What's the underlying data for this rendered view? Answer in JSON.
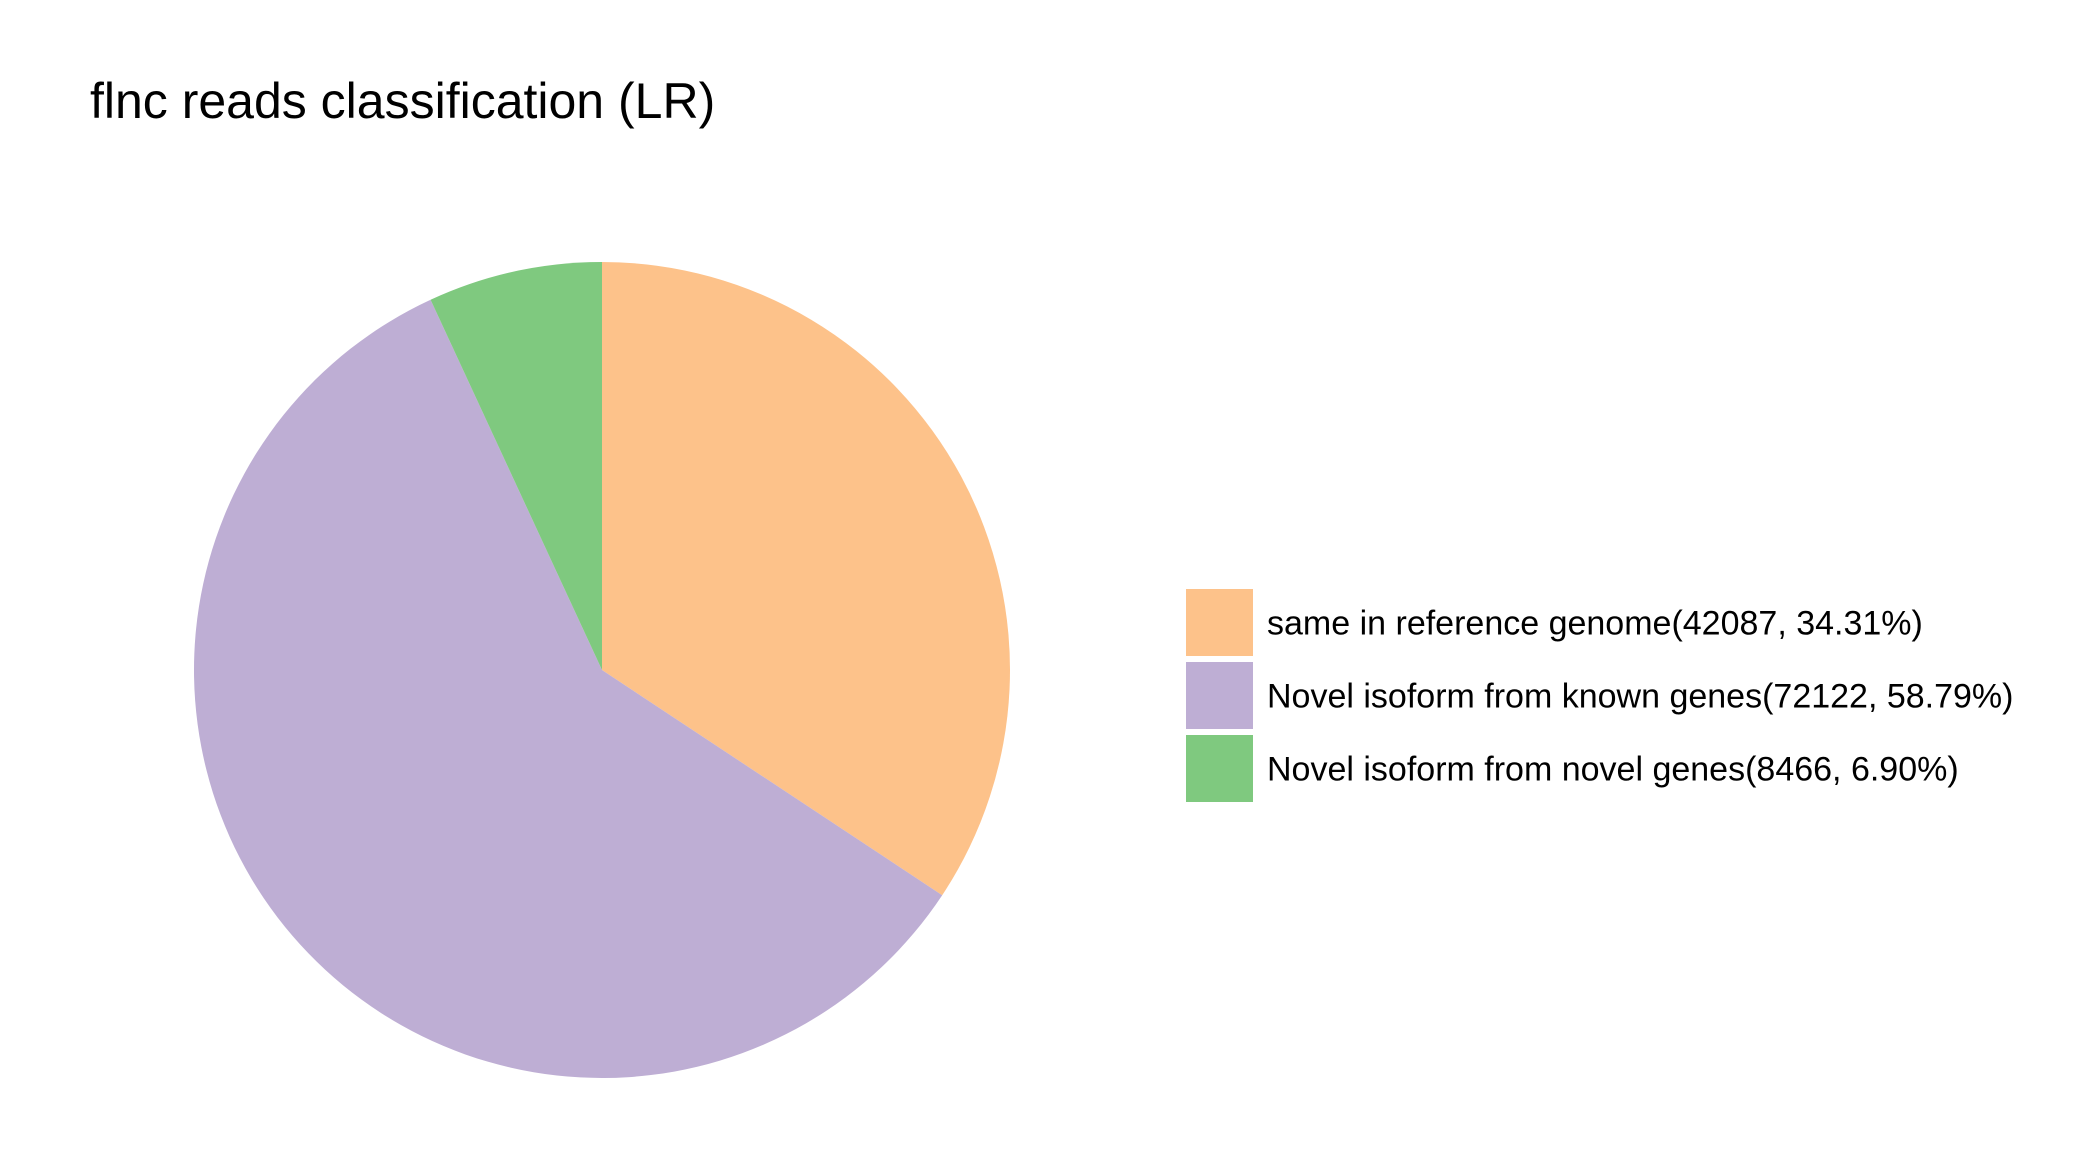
{
  "chart_data": {
    "type": "pie",
    "title": "flnc reads classification (LR)",
    "legend_position": "right",
    "start_angle": "12 o'clock",
    "direction": "clockwise",
    "slices": [
      {
        "label": "same in reference genome",
        "legend_text": "same in reference genome(42087, 34.31%)",
        "value": 42087,
        "percent": 34.31,
        "color": "#FDC28A"
      },
      {
        "label": "Novel isoform from known genes",
        "legend_text": "Novel isoform from known genes(72122, 58.79%)",
        "value": 72122,
        "percent": 58.79,
        "color": "#BEAED4"
      },
      {
        "label": "Novel isoform from novel genes",
        "legend_text": "Novel isoform from novel genes(8466, 6.90%)",
        "value": 8466,
        "percent": 6.9,
        "color": "#7FC97F"
      }
    ]
  }
}
